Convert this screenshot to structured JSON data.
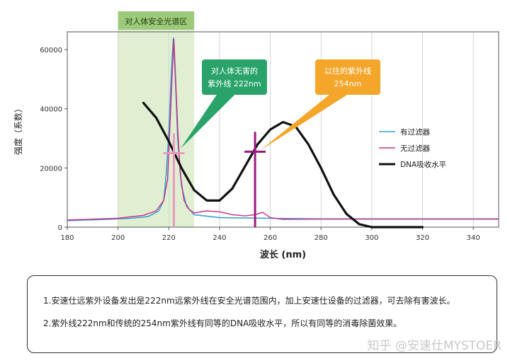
{
  "chart_data": {
    "type": "line",
    "xlabel": "波长 (nm)",
    "ylabel": "强度（系数）",
    "xlim": [
      180,
      350
    ],
    "ylim": [
      0,
      66000
    ],
    "x_ticks": [
      180,
      200,
      220,
      240,
      260,
      280,
      300,
      320,
      340
    ],
    "y_ticks": [
      0,
      20000,
      40000,
      60000
    ],
    "y_tick_labels": [
      "0",
      "20000",
      "40000",
      "60000"
    ],
    "grid": "vertical",
    "legend_position": "right",
    "safe_region": {
      "label": "对人体安全光谱区",
      "x_range": [
        200,
        230
      ],
      "color": "#d6e9c1"
    },
    "series": [
      {
        "name": "有过滤器",
        "color": "#3a9fd6",
        "points": [
          [
            180,
            2200
          ],
          [
            195,
            2600
          ],
          [
            205,
            3000
          ],
          [
            212,
            3600
          ],
          [
            216,
            5500
          ],
          [
            218,
            9000
          ],
          [
            219,
            18000
          ],
          [
            220,
            32000
          ],
          [
            221,
            52000
          ],
          [
            221.8,
            64000
          ],
          [
            222.6,
            50000
          ],
          [
            223.5,
            30000
          ],
          [
            225,
            14000
          ],
          [
            227,
            7000
          ],
          [
            230,
            4200
          ],
          [
            240,
            3200
          ],
          [
            260,
            3000
          ],
          [
            280,
            2800
          ],
          [
            300,
            2800
          ],
          [
            330,
            2800
          ],
          [
            350,
            2800
          ]
        ]
      },
      {
        "name": "无过滤器",
        "color": "#c8307e",
        "points": [
          [
            180,
            2400
          ],
          [
            200,
            3000
          ],
          [
            210,
            4000
          ],
          [
            215,
            5500
          ],
          [
            218,
            9000
          ],
          [
            219.5,
            16000
          ],
          [
            220.5,
            35000
          ],
          [
            221.5,
            55000
          ],
          [
            222,
            63500
          ],
          [
            222.6,
            52000
          ],
          [
            223.5,
            34000
          ],
          [
            224.5,
            18000
          ],
          [
            226,
            9000
          ],
          [
            228,
            6000
          ],
          [
            230,
            4800
          ],
          [
            235,
            5500
          ],
          [
            240,
            5200
          ],
          [
            245,
            4200
          ],
          [
            250,
            3800
          ],
          [
            254,
            4200
          ],
          [
            257,
            5000
          ],
          [
            260,
            3200
          ],
          [
            265,
            2600
          ],
          [
            280,
            2700
          ],
          [
            300,
            2700
          ],
          [
            330,
            2700
          ],
          [
            350,
            2700
          ]
        ]
      },
      {
        "name": "DNA吸收水平",
        "color": "#111111",
        "points": [
          [
            210,
            42000
          ],
          [
            215,
            37000
          ],
          [
            220,
            29000
          ],
          [
            225,
            20000
          ],
          [
            230,
            12500
          ],
          [
            235,
            9000
          ],
          [
            240,
            9000
          ],
          [
            245,
            13000
          ],
          [
            250,
            20500
          ],
          [
            255,
            28000
          ],
          [
            260,
            33000
          ],
          [
            265,
            35500
          ],
          [
            270,
            34000
          ],
          [
            275,
            28000
          ],
          [
            280,
            20000
          ],
          [
            285,
            11000
          ],
          [
            290,
            4500
          ],
          [
            295,
            1000
          ],
          [
            300,
            0
          ],
          [
            310,
            0
          ],
          [
            320,
            0
          ]
        ]
      }
    ],
    "markers": [
      {
        "x": 222,
        "y": 25000,
        "color": "#e89ac0"
      },
      {
        "x": 254,
        "y": 25500,
        "color": "#9c1a7f"
      }
    ],
    "callouts": [
      {
        "lines": [
          "对人体无害的",
          "紫外线 222nm"
        ],
        "fill": "#2aa36b",
        "anchor_x": 222,
        "anchor_y": 26000
      },
      {
        "lines": [
          "以往的紫外线",
          "254nm"
        ],
        "fill": "#f4a62a",
        "anchor_x": 254,
        "anchor_y": 25500
      }
    ]
  },
  "notes": [
    "1.安速仕远紫外设备发出是222nm远紫外线在安全光谱范围内，加上安速仕设备的过滤器，可去除有害波长。",
    "2.紫外线222nm和传统的254nm紫外线有同等的DNA吸收水平，所以有同等的消毒除菌效果。"
  ],
  "watermark": "知乎 @安速仕MYSTOER"
}
